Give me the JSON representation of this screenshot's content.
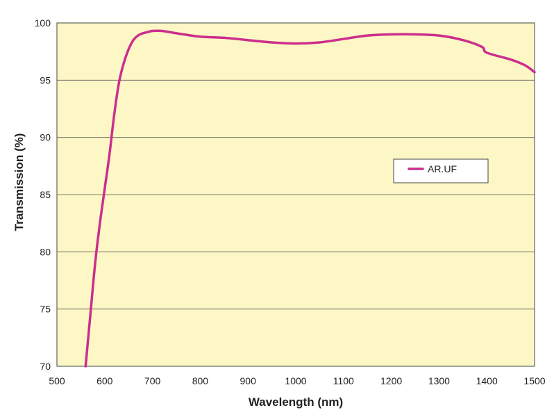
{
  "chart_data": {
    "type": "line",
    "title": "",
    "xlabel": "Wavelength (nm)",
    "ylabel": "Transmission (%)",
    "xlim": [
      500,
      1500
    ],
    "ylim": [
      70,
      100
    ],
    "xticks": [
      500,
      600,
      700,
      800,
      900,
      1000,
      1100,
      1200,
      1300,
      1400,
      1500
    ],
    "yticks": [
      70,
      75,
      80,
      85,
      90,
      95,
      100
    ],
    "grid": "horizontal",
    "legend_position": "center-right",
    "plot_background": "#fdf7c5",
    "series": [
      {
        "name": "AR.UF",
        "color": "#cc2e8e",
        "x": [
          560,
          570,
          580,
          590,
          600,
          610,
          620,
          630,
          640,
          650,
          660,
          670,
          680,
          690,
          700,
          720,
          750,
          800,
          850,
          900,
          950,
          1000,
          1050,
          1100,
          1150,
          1200,
          1250,
          1300,
          1350,
          1390,
          1400,
          1450,
          1480,
          1500
        ],
        "y": [
          70,
          74.5,
          79,
          82.5,
          85.5,
          88.5,
          92,
          94.8,
          96.5,
          97.7,
          98.5,
          98.9,
          99.1,
          99.2,
          99.3,
          99.3,
          99.1,
          98.8,
          98.7,
          98.5,
          98.3,
          98.2,
          98.3,
          98.6,
          98.9,
          99.0,
          99.0,
          98.9,
          98.5,
          97.9,
          97.4,
          96.8,
          96.3,
          95.7
        ]
      }
    ]
  }
}
